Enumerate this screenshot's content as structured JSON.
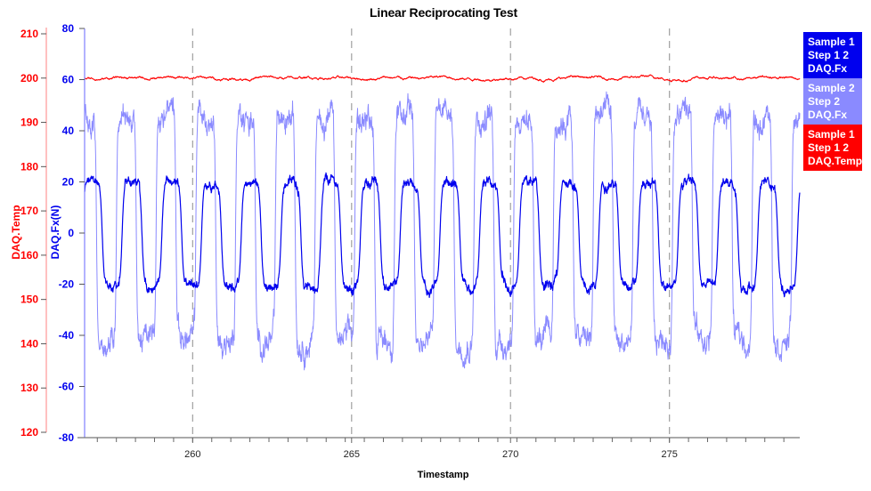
{
  "chart_data": {
    "type": "line",
    "title": "Linear Reciprocating Test",
    "xlabel": "Timestamp",
    "xlim": [
      256.6,
      279.1
    ],
    "x_ticks": [
      260,
      265,
      270,
      275
    ],
    "x_tick_labels": [
      "260",
      "265",
      "270",
      "275"
    ],
    "x_minor_tick_step": 1,
    "x_gridlines": [
      260,
      265,
      270,
      275
    ],
    "y_axes": [
      {
        "id": "fx",
        "label": "DAQ.Fx(N)",
        "color": "#0000ee",
        "ylim": [
          -80,
          80
        ],
        "ticks": [
          80,
          60,
          40,
          20,
          0,
          -20,
          -40,
          -60,
          -80
        ],
        "tick_labels": [
          "80",
          "60",
          "40",
          "20",
          "0",
          "-20",
          "-40",
          "-60",
          "-80"
        ]
      },
      {
        "id": "temp",
        "label": "DAQ.Temp",
        "color": "#ff0000",
        "ylim": [
          119,
          211
        ],
        "ticks": [
          210,
          200,
          190,
          180,
          170,
          160,
          150,
          140,
          130,
          120
        ],
        "tick_labels": [
          "210",
          "200",
          "190",
          "180",
          "170",
          "160",
          "150",
          "140",
          "130",
          "120"
        ]
      }
    ],
    "series": [
      {
        "name": "Sample 1 Step 1 2 DAQ.Fx",
        "axis": "fx",
        "color": "#0000ee",
        "shape": "rounded-square-wave",
        "amplitude_high": 20,
        "amplitude_low": -21,
        "period_s": 1.25,
        "phase_s": 0.28,
        "noise": 2.0
      },
      {
        "name": "Sample 2 Step 2 DAQ.Fx",
        "axis": "fx",
        "color": "#8a8aff",
        "shape": "square-wave",
        "amplitude_high": 45,
        "amplitude_low": -42,
        "period_s": 1.25,
        "phase_s": 0.1,
        "noise": 5.0
      },
      {
        "name": "Sample 1 Step 1 2 DAQ.Temp",
        "axis": "temp",
        "color": "#ff0000",
        "shape": "flat",
        "value": 200,
        "noise": 0.25
      }
    ],
    "legend": {
      "position": "right-top",
      "entries": [
        {
          "lines": [
            "Sample 1",
            "Step 1 2",
            "DAQ.Fx"
          ],
          "color": "#0000ee"
        },
        {
          "lines": [
            "Sample 2",
            "Step 2",
            "DAQ.Fx"
          ],
          "color": "#8a8aff"
        },
        {
          "lines": [
            "Sample 1",
            "Step 1 2",
            "DAQ.Temp"
          ],
          "color": "#ff0000"
        }
      ]
    },
    "grid": "vertical-dashed-at-major-x"
  }
}
